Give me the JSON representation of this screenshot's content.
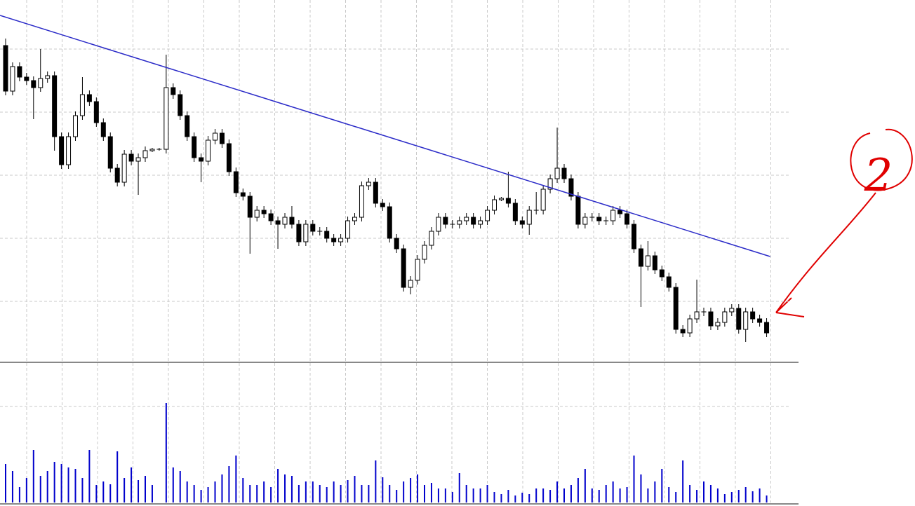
{
  "chart_data": {
    "type": "candlestick",
    "open": [
      455,
      390,
      425,
      410,
      405,
      395,
      408,
      412,
      325,
      285,
      325,
      355,
      385,
      375,
      345,
      325,
      280,
      260,
      300,
      290,
      295,
      305,
      307,
      307,
      395,
      385,
      355,
      325,
      295,
      290,
      320,
      330,
      315,
      275,
      245,
      240,
      210,
      220,
      215,
      205,
      200,
      210,
      200,
      175,
      200,
      190,
      190,
      180,
      175,
      180,
      205,
      210,
      255,
      260,
      230,
      225,
      180,
      165,
      110,
      120,
      150,
      170,
      190,
      210,
      200,
      200,
      205,
      210,
      200,
      205,
      220,
      235,
      237,
      230,
      205,
      200,
      220,
      220,
      250,
      265,
      280,
      265,
      240,
      200,
      210,
      210,
      205,
      205,
      220,
      215,
      200,
      165,
      140,
      155,
      135,
      125,
      110,
      50,
      45,
      65,
      75,
      75,
      55,
      60,
      75,
      80,
      50,
      75,
      65,
      60
    ],
    "high": [
      465,
      431,
      431,
      416,
      411,
      450,
      418,
      418,
      331,
      331,
      361,
      410,
      391,
      381,
      351,
      331,
      286,
      306,
      306,
      301,
      311,
      309,
      309,
      442,
      401,
      391,
      361,
      331,
      301,
      326,
      336,
      336,
      321,
      281,
      251,
      246,
      226,
      226,
      221,
      211,
      216,
      226,
      206,
      206,
      206,
      196,
      196,
      186,
      186,
      211,
      216,
      261,
      266,
      266,
      236,
      231,
      186,
      171,
      126,
      156,
      176,
      196,
      216,
      216,
      206,
      211,
      216,
      216,
      211,
      226,
      241,
      239,
      275,
      236,
      211,
      226,
      246,
      256,
      271,
      338,
      286,
      271,
      246,
      216,
      216,
      216,
      211,
      226,
      226,
      221,
      206,
      171,
      176,
      161,
      141,
      131,
      116,
      56,
      71,
      121,
      81,
      81,
      66,
      81,
      86,
      86,
      81,
      81,
      71,
      66
    ],
    "low": [
      384,
      384,
      404,
      399,
      350,
      389,
      402,
      305,
      279,
      279,
      319,
      349,
      369,
      339,
      319,
      274,
      254,
      254,
      284,
      242,
      289,
      303,
      305,
      301,
      379,
      349,
      319,
      289,
      260,
      284,
      314,
      309,
      269,
      239,
      234,
      158,
      204,
      209,
      199,
      165,
      194,
      194,
      169,
      169,
      184,
      184,
      174,
      169,
      169,
      174,
      199,
      204,
      249,
      224,
      219,
      174,
      159,
      104,
      100,
      114,
      144,
      164,
      184,
      194,
      194,
      194,
      199,
      194,
      194,
      199,
      214,
      233,
      224,
      199,
      194,
      185,
      214,
      214,
      244,
      259,
      259,
      234,
      194,
      194,
      204,
      199,
      199,
      199,
      209,
      194,
      159,
      82,
      134,
      129,
      119,
      104,
      44,
      39,
      39,
      59,
      69,
      49,
      49,
      54,
      69,
      44,
      32,
      59,
      54,
      39
    ],
    "close": [
      390,
      425,
      410,
      405,
      395,
      408,
      412,
      325,
      285,
      325,
      355,
      385,
      375,
      345,
      325,
      280,
      260,
      300,
      290,
      295,
      305,
      307,
      307,
      395,
      385,
      355,
      325,
      295,
      290,
      320,
      330,
      315,
      275,
      245,
      240,
      210,
      220,
      215,
      205,
      200,
      210,
      200,
      175,
      200,
      190,
      190,
      180,
      175,
      180,
      205,
      210,
      255,
      260,
      230,
      225,
      180,
      165,
      110,
      120,
      150,
      170,
      190,
      210,
      200,
      200,
      205,
      210,
      200,
      205,
      220,
      235,
      237,
      230,
      205,
      200,
      220,
      220,
      250,
      265,
      280,
      265,
      240,
      200,
      210,
      210,
      205,
      205,
      220,
      215,
      200,
      165,
      140,
      155,
      135,
      125,
      110,
      50,
      45,
      65,
      75,
      75,
      55,
      60,
      75,
      80,
      50,
      75,
      65,
      60,
      45
    ],
    "volume": [
      55,
      45,
      22,
      35,
      75,
      38,
      45,
      58,
      55,
      50,
      48,
      35,
      75,
      25,
      30,
      26,
      73,
      35,
      50,
      32,
      38,
      25,
      0,
      142,
      50,
      45,
      30,
      25,
      18,
      22,
      30,
      40,
      52,
      67,
      35,
      25,
      25,
      30,
      22,
      48,
      40,
      38,
      25,
      30,
      30,
      25,
      22,
      30,
      25,
      32,
      38,
      25,
      25,
      60,
      36,
      25,
      18,
      30,
      35,
      40,
      25,
      28,
      20,
      20,
      15,
      42,
      25,
      20,
      20,
      25,
      15,
      12,
      18,
      10,
      14,
      12,
      20,
      20,
      18,
      30,
      20,
      25,
      35,
      48,
      20,
      18,
      25,
      30,
      20,
      22,
      67,
      40,
      20,
      30,
      48,
      22,
      15,
      60,
      25,
      18,
      30,
      25,
      20,
      12,
      15,
      18,
      22,
      16,
      20,
      10
    ],
    "candle_color": "#000000",
    "volume_color": "#0000cc",
    "ylim": [
      3,
      520
    ],
    "yticks": [
      90,
      180,
      270,
      360,
      450
    ],
    "volume_ylim": [
      0,
      197
    ],
    "volume_yticks": [
      137
    ],
    "grid": true,
    "trendline": {
      "x": [
        -0.8,
        109.5
      ],
      "y": [
        498,
        154
      ],
      "color": "#2b2bc8"
    },
    "annotation": {
      "text": "2",
      "color": "#e00000"
    }
  }
}
